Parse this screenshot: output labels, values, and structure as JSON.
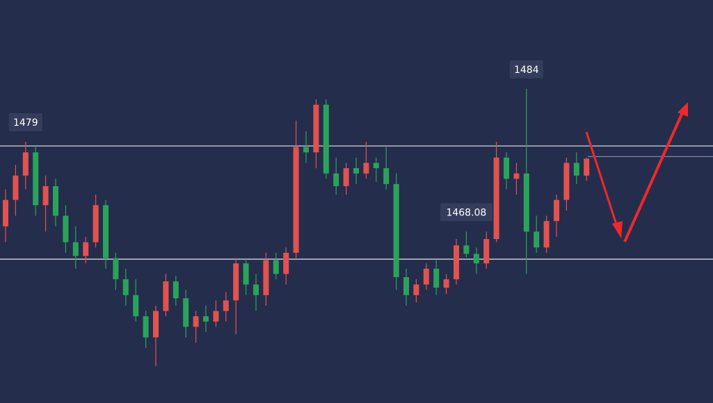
{
  "chart_data": {
    "type": "candlestick",
    "ylim": [
      1454.3,
      1492.4
    ],
    "up_color": "#e2524f",
    "down_color": "#2aa35a",
    "open": [
      1471.0,
      1473.5,
      1475.8,
      1478.0,
      1473.0,
      1474.8,
      1472.0,
      1469.5,
      1468.2,
      1469.5,
      1473.0,
      1468.0,
      1466.0,
      1464.5,
      1462.5,
      1460.5,
      1463.0,
      1465.8,
      1464.2,
      1461.5,
      1462.5,
      1462.0,
      1463.0,
      1464.0,
      1467.5,
      1465.5,
      1464.5,
      1467.8,
      1466.5,
      1468.5,
      1478.5,
      1478.0,
      1482.5,
      1476.0,
      1474.8,
      1476.5,
      1476.0,
      1477.0,
      1476.5,
      1475.0,
      1466.2,
      1464.5,
      1465.5,
      1467.0,
      1465.2,
      1466.0,
      1469.2,
      1468.4,
      1467.5,
      1469.8,
      1477.5,
      1475.5,
      1476.0,
      1470.5,
      1469.0,
      1471.5,
      1473.5,
      1477.0,
      1475.8
    ],
    "high": [
      1474.5,
      1476.8,
      1479.0,
      1478.6,
      1475.8,
      1475.5,
      1473.0,
      1471.0,
      1470.0,
      1474.0,
      1473.5,
      1468.5,
      1467.0,
      1466.0,
      1463.0,
      1463.5,
      1466.5,
      1466.3,
      1465.0,
      1463.0,
      1463.5,
      1464.0,
      1464.8,
      1468.0,
      1468.0,
      1466.5,
      1468.5,
      1468.5,
      1469.0,
      1481.0,
      1480.0,
      1483.0,
      1483.0,
      1477.5,
      1477.0,
      1477.5,
      1479.0,
      1477.5,
      1478.5,
      1476.0,
      1467.0,
      1466.0,
      1467.5,
      1467.8,
      1466.5,
      1469.8,
      1470.5,
      1469.0,
      1470.5,
      1479,
      1478.0,
      1477.0,
      1484,
      1472.0,
      1472.0,
      1474.0,
      1477.5,
      1478.0,
      1477.5
    ],
    "low": [
      1469.5,
      1472.0,
      1474.5,
      1472.0,
      1470.5,
      1471.0,
      1468.5,
      1467.0,
      1467.5,
      1469.0,
      1467.0,
      1465.0,
      1463.5,
      1462.0,
      1459.5,
      1457.8,
      1462.5,
      1463.5,
      1460.5,
      1460.0,
      1461.0,
      1461.5,
      1462.0,
      1460.8,
      1464.5,
      1463.0,
      1463.5,
      1466.0,
      1465.5,
      1468.0,
      1477.0,
      1476.5,
      1475.5,
      1474.0,
      1474.0,
      1475.0,
      1475.5,
      1475.2,
      1474.5,
      1465.0,
      1463.5,
      1463.8,
      1465.0,
      1464.5,
      1464.6,
      1465.5,
      1468.08,
      1466.5,
      1467.0,
      1469.5,
      1474.5,
      1474.0,
      1466.5,
      1468.5,
      1468.5,
      1470.0,
      1472.5,
      1475.0,
      1475.3
    ],
    "close": [
      1473.5,
      1475.8,
      1478.0,
      1473.0,
      1474.8,
      1472.0,
      1469.5,
      1468.2,
      1469.5,
      1473.0,
      1468.0,
      1466.0,
      1464.5,
      1462.5,
      1460.5,
      1463.0,
      1465.8,
      1464.2,
      1461.5,
      1462.5,
      1462.0,
      1463.0,
      1464.0,
      1467.5,
      1465.5,
      1464.5,
      1467.8,
      1466.5,
      1468.5,
      1478.5,
      1478.0,
      1482.5,
      1476.0,
      1474.8,
      1476.5,
      1476.0,
      1477.0,
      1476.5,
      1475.0,
      1466.2,
      1464.5,
      1465.5,
      1467.0,
      1465.2,
      1466.0,
      1469.2,
      1468.4,
      1467.5,
      1469.8,
      1477.5,
      1475.5,
      1476.0,
      1470.5,
      1469.0,
      1471.5,
      1473.5,
      1477.0,
      1475.8,
      1477.4
    ],
    "levels": [
      1478.6,
      1467.9,
      1477.6
    ],
    "annotations": [
      1484,
      1479,
      1468.08
    ]
  }
}
